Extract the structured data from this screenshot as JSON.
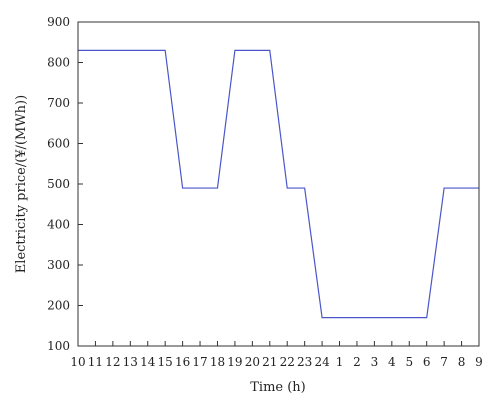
{
  "chart_data": {
    "type": "line",
    "xlabel": "Time (h)",
    "ylabel": "Electricity price/(¥/(MWh))",
    "categories": [
      "10",
      "11",
      "12",
      "13",
      "14",
      "15",
      "16",
      "17",
      "18",
      "19",
      "20",
      "21",
      "22",
      "23",
      "24",
      "1",
      "2",
      "3",
      "4",
      "5",
      "6",
      "7",
      "8",
      "9"
    ],
    "series": [
      {
        "values": [
          830,
          830,
          830,
          830,
          830,
          830,
          490,
          490,
          490,
          830,
          830,
          830,
          490,
          490,
          170,
          170,
          170,
          170,
          170,
          170,
          170,
          490,
          490,
          490
        ]
      }
    ],
    "ylim": [
      100,
      900
    ],
    "yticks": [
      100,
      200,
      300,
      400,
      500,
      600,
      700,
      800,
      900
    ],
    "grid": false,
    "color": "#4a56c8"
  }
}
